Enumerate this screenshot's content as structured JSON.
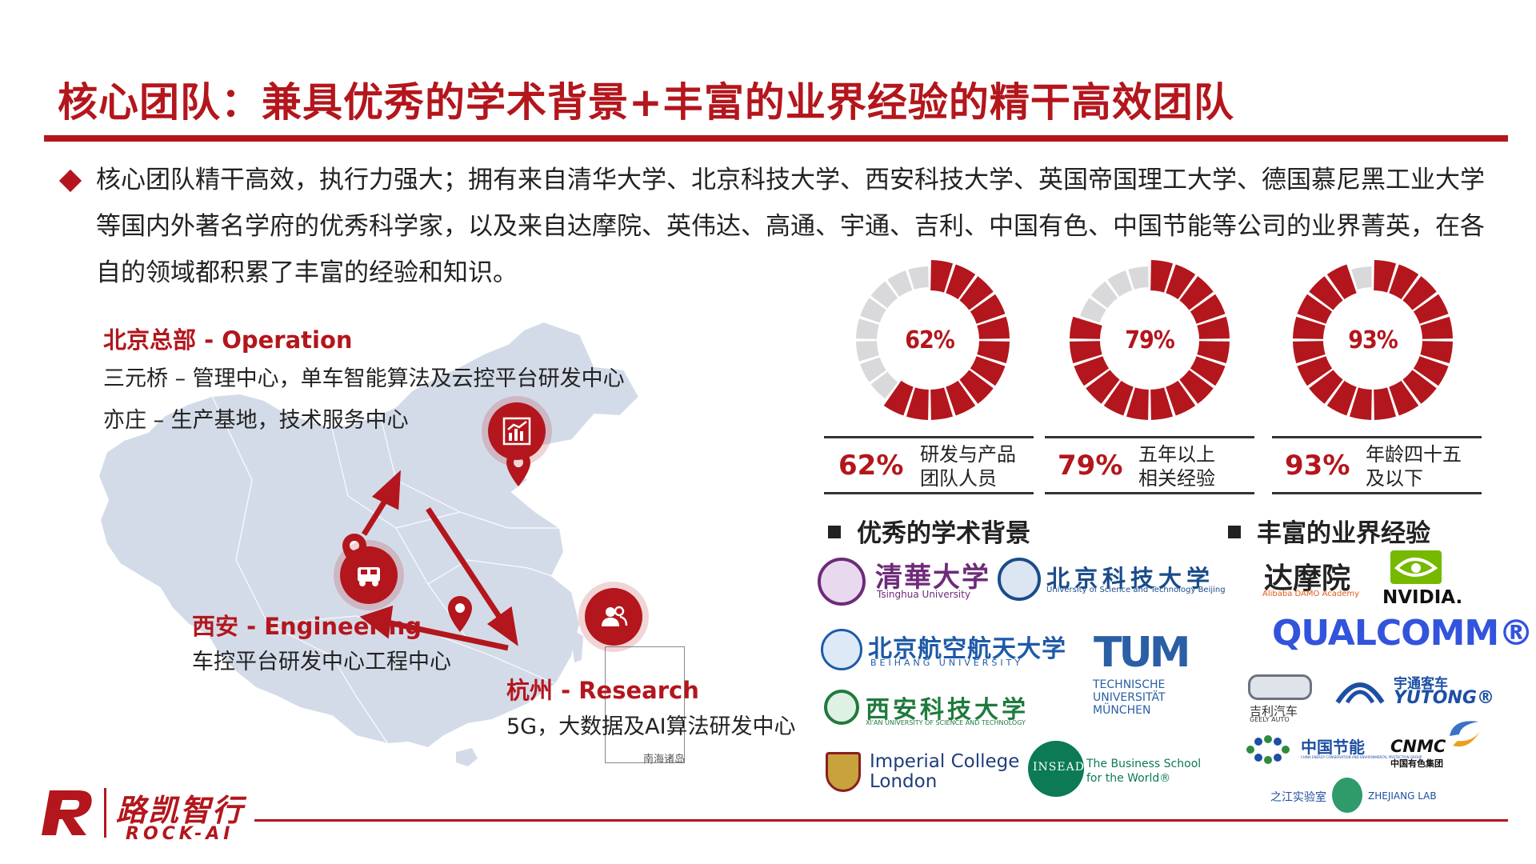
{
  "title": "核心团队：兼具优秀的学术背景+丰富的业界经验的精干高效团队",
  "intro": "核心团队精干高效，执行力强大；拥有来自清华大学、北京科技大学、西安科技大学、英国帝国理工大学、德国慕尼黑工业大学等国内外著名学府的优秀科学家，以及来自达摩院、英伟达、高通、宇通、吉利、中国有色、中国节能等公司的业界菁英，在各自的领域都积累了丰富的经验和知识。",
  "locations": {
    "beijing": {
      "head": "北京总部 - Operation",
      "line1": "三元桥 – 管理中心，单车智能算法及云控平台研发中心",
      "line2": "亦庄 – 生产基地，技术服务中心"
    },
    "xian": {
      "head": "西安 - Engineering",
      "line1": "车控平台研发中心工程中心"
    },
    "hangzhou": {
      "head": "杭州 - Research",
      "line1": "5G，大数据及AI算法研发中心"
    },
    "inset_label": "南海诸岛"
  },
  "chart_data": {
    "type": "pie",
    "items": [
      {
        "value": 62,
        "label": "62%",
        "desc_line1": "研发与产品",
        "desc_line2": "团队人员"
      },
      {
        "value": 79,
        "label": "79%",
        "desc_line1": "五年以上",
        "desc_line2": "相关经验"
      },
      {
        "value": 93,
        "label": "93%",
        "desc_line1": "年龄四十五",
        "desc_line2": "及以下"
      }
    ],
    "colors": {
      "filled": "#b3161c",
      "empty": "#d9d9db"
    }
  },
  "sections": {
    "academic": "优秀的学术背景",
    "industry": "丰富的业界经验"
  },
  "logos": {
    "tsinghua": {
      "cn": "清華大学",
      "en": "Tsinghua University"
    },
    "ustb": {
      "cn": "北京科技大学",
      "en": "University of Science and Technology Beijing"
    },
    "buaa": {
      "cn": "北京航空航天大学",
      "en": "BEIHANG UNIVERSITY"
    },
    "tum": {
      "mark": "TUM",
      "line1": "TECHNISCHE",
      "line2": "UNIVERSITÄT",
      "line3": "MÜNCHEN"
    },
    "xust": {
      "cn": "西安科技大学",
      "en": "XI'AN UNIVERSITY OF SCIENCE AND TECHNOLOGY"
    },
    "imperial": {
      "line1": "Imperial College",
      "line2": "London"
    },
    "insead": {
      "mark": "INSEAD",
      "line1": "The Business School",
      "line2": "for the World®"
    },
    "damo": {
      "cn": "达摩院",
      "en": "Alibaba DAMO Academy"
    },
    "nvidia": {
      "name": "NVIDIA."
    },
    "qualcomm": {
      "name": "QUALCOMM®"
    },
    "geely": {
      "cn": "吉利汽车",
      "en": "GEELY AUTO"
    },
    "yutong": {
      "cn": "宇通客车",
      "en": "YUTONG®"
    },
    "cecep": {
      "cn": "中国节能",
      "en": "CHINA ENERGY CONSERVATION AND ENVIRONMENTAL PROTECTION GROUP"
    },
    "cnmc": {
      "name": "CNMC",
      "cn": "中国有色集团"
    },
    "zjlab": {
      "cn": "之江实验室",
      "en": "ZHEJIANG LAB"
    }
  },
  "footer": {
    "brand": "路凯智行",
    "sub": "ROCK-AI",
    "logo_mark": "R"
  }
}
